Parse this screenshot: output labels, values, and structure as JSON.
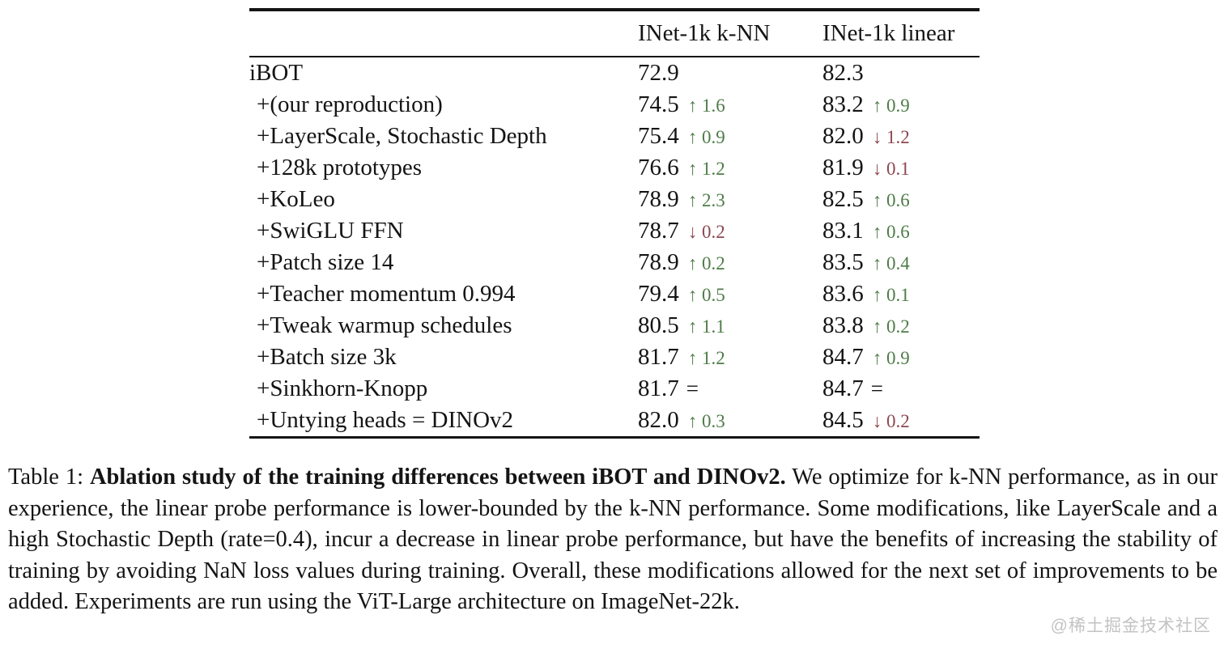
{
  "colors": {
    "increase": "#4e7c48",
    "decrease": "#8d4750",
    "text": "#141414",
    "watermark": "#c3c3c3"
  },
  "table": {
    "columns": {
      "knn": "INet-1k k-NN",
      "linear": "INet-1k linear"
    },
    "rows": [
      {
        "label": "iBOT",
        "knn": {
          "value": "72.9",
          "delta": "",
          "dir": ""
        },
        "linear": {
          "value": "82.3",
          "delta": "",
          "dir": ""
        }
      },
      {
        "label": "+(our reproduction)",
        "knn": {
          "value": "74.5",
          "delta": "↑ 1.6",
          "dir": "up"
        },
        "linear": {
          "value": "83.2",
          "delta": "↑ 0.9",
          "dir": "up"
        }
      },
      {
        "label": "+LayerScale, Stochastic Depth",
        "knn": {
          "value": "75.4",
          "delta": "↑ 0.9",
          "dir": "up"
        },
        "linear": {
          "value": "82.0",
          "delta": "↓ 1.2",
          "dir": "down"
        }
      },
      {
        "label": "+128k prototypes",
        "knn": {
          "value": "76.6",
          "delta": "↑ 1.2",
          "dir": "up"
        },
        "linear": {
          "value": "81.9",
          "delta": "↓ 0.1",
          "dir": "down"
        }
      },
      {
        "label": "+KoLeo",
        "knn": {
          "value": "78.9",
          "delta": "↑ 2.3",
          "dir": "up"
        },
        "linear": {
          "value": "82.5",
          "delta": "↑ 0.6",
          "dir": "up"
        }
      },
      {
        "label": "+SwiGLU FFN",
        "knn": {
          "value": "78.7",
          "delta": "↓ 0.2",
          "dir": "down"
        },
        "linear": {
          "value": "83.1",
          "delta": "↑ 0.6",
          "dir": "up"
        }
      },
      {
        "label": "+Patch size 14",
        "knn": {
          "value": "78.9",
          "delta": "↑ 0.2",
          "dir": "up"
        },
        "linear": {
          "value": "83.5",
          "delta": "↑ 0.4",
          "dir": "up"
        }
      },
      {
        "label": "+Teacher momentum 0.994",
        "knn": {
          "value": "79.4",
          "delta": "↑ 0.5",
          "dir": "up"
        },
        "linear": {
          "value": "83.6",
          "delta": "↑ 0.1",
          "dir": "up"
        }
      },
      {
        "label": "+Tweak warmup schedules",
        "knn": {
          "value": "80.5",
          "delta": "↑ 1.1",
          "dir": "up"
        },
        "linear": {
          "value": "83.8",
          "delta": "↑ 0.2",
          "dir": "up"
        }
      },
      {
        "label": "+Batch size 3k",
        "knn": {
          "value": "81.7",
          "delta": "↑ 1.2",
          "dir": "up"
        },
        "linear": {
          "value": "84.7",
          "delta": "↑ 0.9",
          "dir": "up"
        }
      },
      {
        "label": "+Sinkhorn-Knopp",
        "knn": {
          "value": "81.7",
          "delta": "=",
          "dir": "eq"
        },
        "linear": {
          "value": "84.7",
          "delta": "=",
          "dir": "eq"
        }
      },
      {
        "label": "+Untying heads = DINOv2",
        "knn": {
          "value": "82.0",
          "delta": "↑ 0.3",
          "dir": "up"
        },
        "linear": {
          "value": "84.5",
          "delta": "↓ 0.2",
          "dir": "down"
        }
      }
    ]
  },
  "caption": {
    "prefix": "Table 1: ",
    "bold": "Ablation study of the training differences between iBOT and DINOv2.",
    "body": " We optimize for k-NN performance, as in our experience, the linear probe performance is lower-bounded by the k-NN performance. Some modifications, like LayerScale and a high Stochastic Depth (rate=0.4), incur a decrease in linear probe performance, but have the benefits of increasing the stability of training by avoiding NaN loss values during training. Overall, these modifications allowed for the next set of improvements to be added. Experiments are run using the ViT-Large architecture on ImageNet-22k."
  },
  "watermark": "@稀土掘金技术社区"
}
